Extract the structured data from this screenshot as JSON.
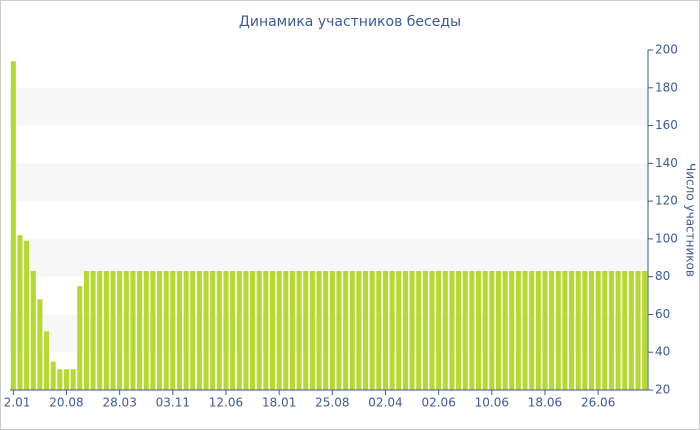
{
  "chart_data": {
    "type": "bar",
    "title": "Динамика участников беседы",
    "y_label": "Число участников",
    "categories": [
      "2.01",
      null,
      null,
      null,
      null,
      null,
      null,
      null,
      "20.08",
      null,
      null,
      null,
      null,
      null,
      null,
      null,
      "28.03",
      null,
      null,
      null,
      null,
      null,
      null,
      null,
      "03.11",
      null,
      null,
      null,
      null,
      null,
      null,
      null,
      "12.06",
      null,
      null,
      null,
      null,
      null,
      null,
      null,
      "18.01",
      null,
      null,
      null,
      null,
      null,
      null,
      null,
      "25.08",
      null,
      null,
      null,
      null,
      null,
      null,
      null,
      "02.04",
      null,
      null,
      null,
      null,
      null,
      null,
      null,
      "02.06",
      null,
      null,
      null,
      null,
      null,
      null,
      null,
      "10.06",
      null,
      null,
      null,
      null,
      null,
      null,
      null,
      "18.06",
      null,
      null,
      null,
      null,
      null,
      null,
      null,
      "26.06",
      null,
      null,
      null,
      null,
      null,
      null,
      null
    ],
    "values": [
      194,
      102,
      99,
      83,
      68,
      51,
      35,
      31,
      31,
      31,
      75,
      83,
      83,
      83,
      83,
      83,
      83,
      83,
      83,
      83,
      83,
      83,
      83,
      83,
      83,
      83,
      83,
      83,
      83,
      83,
      83,
      83,
      83,
      83,
      83,
      83,
      83,
      83,
      83,
      83,
      83,
      83,
      83,
      83,
      83,
      83,
      83,
      83,
      83,
      83,
      83,
      83,
      83,
      83,
      83,
      83,
      83,
      83,
      83,
      83,
      83,
      83,
      83,
      83,
      83,
      83,
      83,
      83,
      83,
      83,
      83,
      83,
      83,
      83,
      83,
      83,
      83,
      83,
      83,
      83,
      83,
      83,
      83,
      83,
      83,
      83,
      83,
      83,
      83,
      83,
      83,
      83,
      83,
      83,
      83,
      83
    ],
    "color": "#b5d930",
    "ylim": [
      20,
      200
    ],
    "yticks": [
      20,
      40,
      60,
      80,
      100,
      120,
      140,
      160,
      180,
      200
    ],
    "grid": "bands",
    "y_axis_side": "right"
  }
}
